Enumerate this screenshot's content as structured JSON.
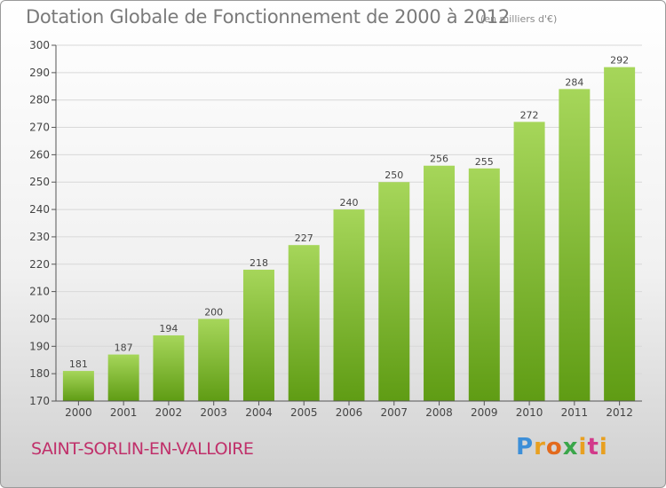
{
  "header": {
    "title": "Dotation Globale de Fonctionnement de 2000 à 2012",
    "subtitle": "(en milliers d'€)"
  },
  "footer": {
    "commune": "SAINT-SORLIN-EN-VALLOIRE",
    "logo": {
      "p": "P",
      "r": "r",
      "o": "o",
      "x": "x",
      "i": "i",
      "t": "t",
      "i2": "i"
    }
  },
  "colors": {
    "bar_top": "#a6d65a",
    "bar_bottom": "#5f9c14",
    "grid": "#d8d8d8",
    "axis": "#555555",
    "commune": "#c0306a"
  },
  "chart_data": {
    "type": "bar",
    "title": "Dotation Globale de Fonctionnement de 2000 à 2012",
    "subtitle": "(en milliers d'€)",
    "categories": [
      "2000",
      "2001",
      "2002",
      "2003",
      "2004",
      "2005",
      "2006",
      "2007",
      "2008",
      "2009",
      "2010",
      "2011",
      "2012"
    ],
    "values": [
      181,
      187,
      194,
      200,
      218,
      227,
      240,
      250,
      256,
      255,
      272,
      284,
      292
    ],
    "ylim": [
      170,
      300
    ],
    "yticks": [
      170,
      180,
      190,
      200,
      210,
      220,
      230,
      240,
      250,
      260,
      270,
      280,
      290,
      300
    ],
    "xlabel": "",
    "ylabel": "",
    "grid": true
  }
}
